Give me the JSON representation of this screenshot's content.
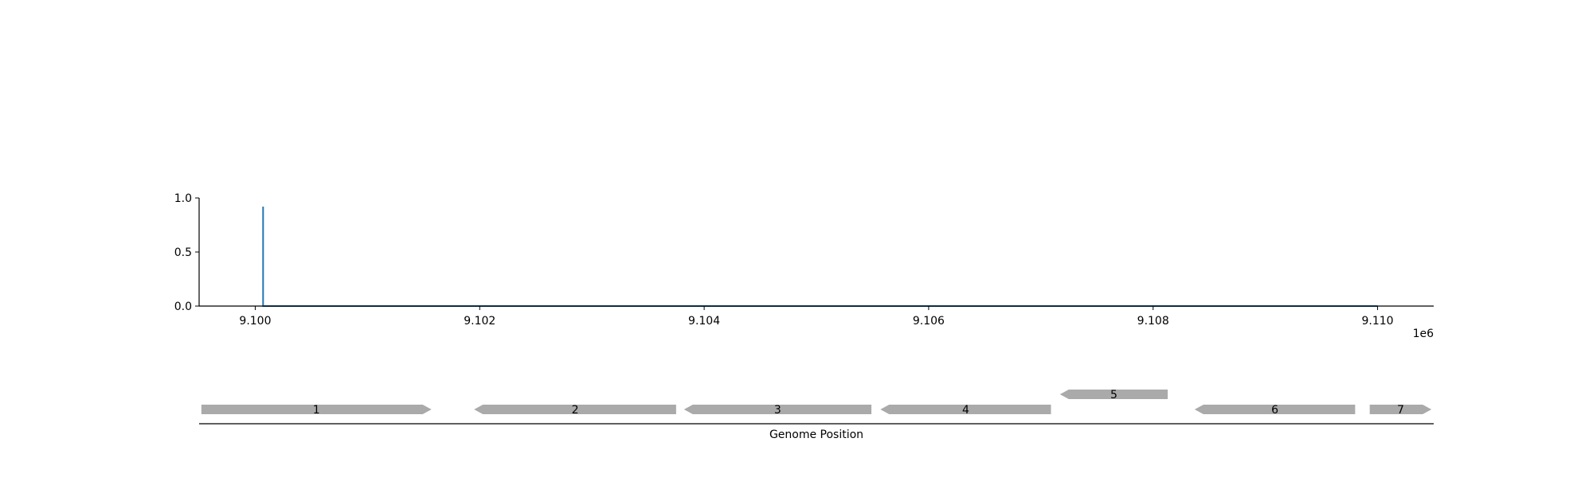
{
  "chart_data": [
    {
      "type": "line",
      "title": "",
      "xlabel": "",
      "ylabel": "",
      "x_offset_label": "1e6",
      "xlim": [
        9.0995,
        9.1105
      ],
      "ylim": [
        0.0,
        1.0
      ],
      "x_ticks": [
        9.1,
        9.102,
        9.104,
        9.106,
        9.108,
        9.11
      ],
      "x_tick_labels": [
        "9.100",
        "9.102",
        "9.104",
        "9.106",
        "9.108",
        "9.110"
      ],
      "y_ticks": [
        0.0,
        0.5,
        1.0
      ],
      "y_tick_labels": [
        "0.0",
        "0.5",
        "1.0"
      ],
      "grid": false,
      "series": [
        {
          "color": "#1f77b4",
          "x": [
            9.10007,
            9.10007,
            9.10007,
            9.11
          ],
          "y": [
            0.0,
            0.92,
            0.0,
            0.0
          ]
        }
      ]
    },
    {
      "type": "gene-track",
      "xlabel": "Genome Position",
      "xlim": [
        9.0995,
        9.1105
      ],
      "feature_color": "#aaaaaa",
      "genes": [
        {
          "label": "1",
          "start": 9.09952,
          "end": 9.10157,
          "strand": 1,
          "row": 0
        },
        {
          "label": "2",
          "start": 9.10195,
          "end": 9.10375,
          "strand": -1,
          "row": 0
        },
        {
          "label": "3",
          "start": 9.10382,
          "end": 9.10549,
          "strand": -1,
          "row": 0
        },
        {
          "label": "4",
          "start": 9.10557,
          "end": 9.10709,
          "strand": -1,
          "row": 0
        },
        {
          "label": "5",
          "start": 9.10717,
          "end": 9.10813,
          "strand": -1,
          "row": 1
        },
        {
          "label": "6",
          "start": 9.10837,
          "end": 9.1098,
          "strand": -1,
          "row": 0
        },
        {
          "label": "7",
          "start": 9.10993,
          "end": 9.11048,
          "strand": 1,
          "row": 0
        }
      ]
    }
  ]
}
